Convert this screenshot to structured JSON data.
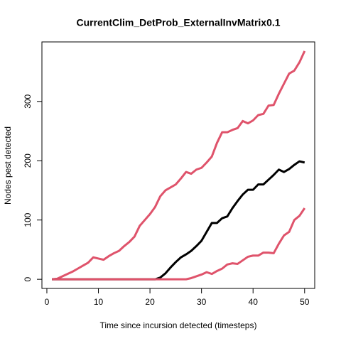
{
  "chart_data": {
    "type": "line",
    "title": "CurrentClim_DetProb_ExternalInvMatrix0.1",
    "x_label": "Time since incursion detected (timesteps)",
    "y_label": "Nodes pest detected",
    "x": [
      1,
      2,
      3,
      4,
      5,
      6,
      7,
      8,
      9,
      10,
      11,
      12,
      13,
      14,
      15,
      16,
      17,
      18,
      19,
      20,
      21,
      22,
      23,
      24,
      25,
      26,
      27,
      28,
      29,
      30,
      31,
      32,
      33,
      34,
      35,
      36,
      37,
      38,
      39,
      40,
      41,
      42,
      43,
      44,
      45,
      46,
      47,
      48,
      49,
      50
    ],
    "series": [
      {
        "color": "#DF536B",
        "values": [
          0,
          1,
          5,
          9,
          13,
          18,
          23,
          28,
          37,
          35,
          33,
          39,
          44,
          48,
          56,
          63,
          72,
          90,
          100,
          110,
          122,
          140,
          150,
          155,
          160,
          170,
          181,
          178,
          185,
          188,
          197,
          207,
          230,
          248,
          248,
          252,
          255,
          267,
          263,
          268,
          277,
          279,
          293,
          294,
          313,
          330,
          347,
          352,
          366,
          385
        ]
      },
      {
        "color": "#000000",
        "values": [
          0,
          0,
          0,
          0,
          0,
          0,
          0,
          0,
          0,
          0,
          0,
          0,
          0,
          0,
          0,
          0,
          0,
          0,
          0,
          0,
          0,
          3,
          10,
          20,
          29,
          37,
          42,
          48,
          56,
          65,
          80,
          95,
          95,
          103,
          106,
          120,
          132,
          143,
          151,
          151,
          160,
          160,
          168,
          176,
          185,
          181,
          186,
          193,
          199,
          197
        ]
      },
      {
        "color": "#DF536B",
        "values": [
          0,
          0,
          0,
          0,
          0,
          0,
          0,
          0,
          0,
          0,
          0,
          0,
          0,
          0,
          0,
          0,
          0,
          0,
          0,
          0,
          0,
          0,
          0,
          0,
          0,
          0,
          0,
          2,
          5,
          8,
          12,
          9,
          14,
          18,
          25,
          27,
          26,
          32,
          38,
          40,
          40,
          45,
          45,
          44,
          60,
          74,
          80,
          100,
          107,
          120
        ]
      }
    ],
    "xlim": [
      -0.96,
      51.96
    ],
    "xticks": [
      0,
      10,
      20,
      30,
      40,
      50
    ],
    "ylim": [
      -15.4,
      400.4
    ],
    "yticks": [
      0,
      100,
      200,
      300
    ]
  }
}
